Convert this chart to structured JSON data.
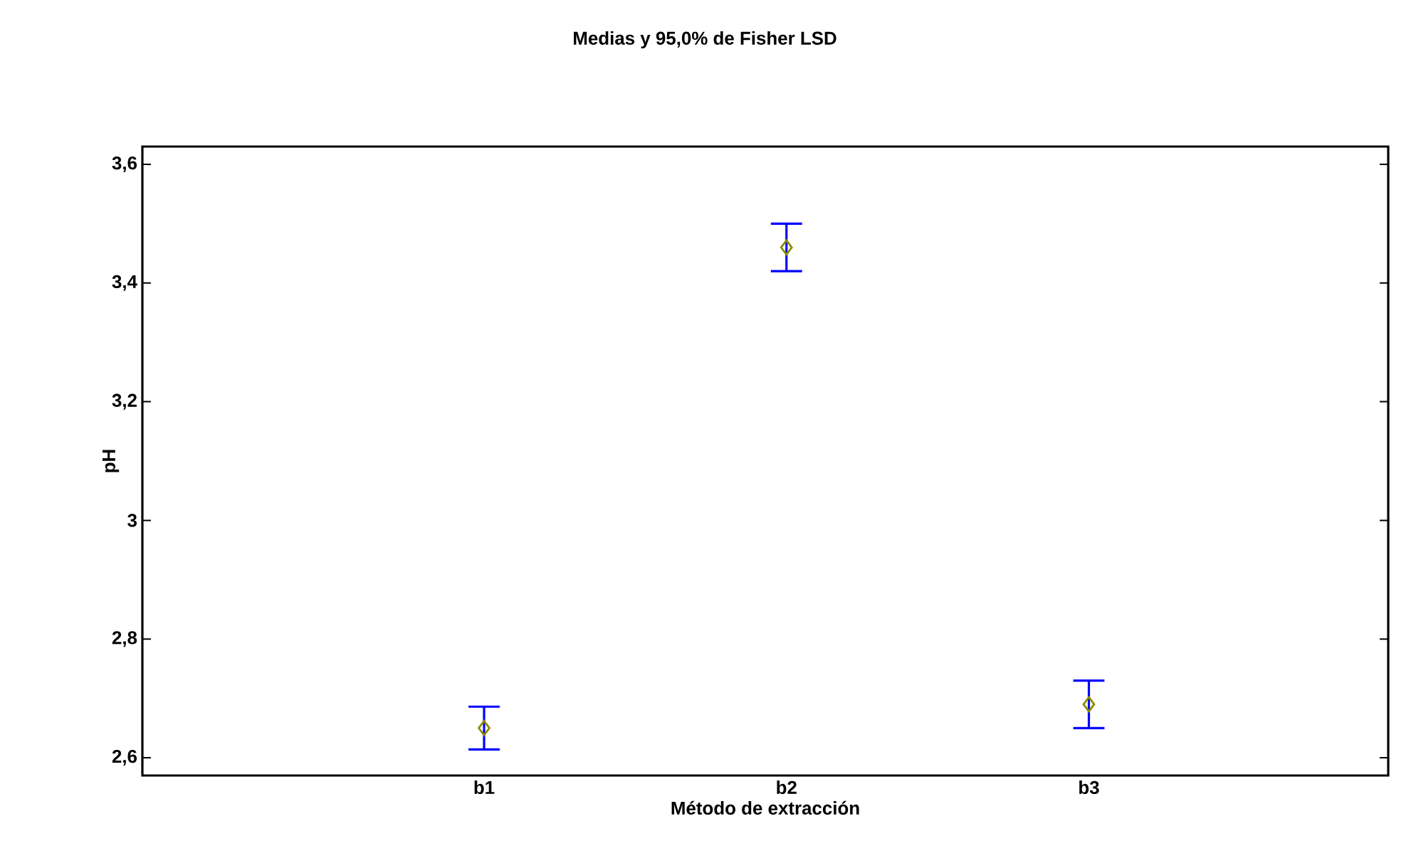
{
  "chart_data": {
    "type": "scatter",
    "title": "Medias y 95,0% de Fisher LSD",
    "xlabel": "Método de extracción",
    "ylabel": "pH",
    "categories": [
      "b1",
      "b2",
      "b3"
    ],
    "series": [
      {
        "color": "#8b8b00",
        "values": [
          2.65,
          3.46,
          2.69
        ],
        "errors": [
          0.036,
          0.04,
          0.04
        ]
      }
    ],
    "marker": "diamond",
    "ylim": [
      2.57,
      3.63
    ],
    "yticks": [
      {
        "value": 2.6,
        "label": "2,6"
      },
      {
        "value": 2.8,
        "label": "2,8"
      },
      3,
      {
        "value": 3.2,
        "label": "3,2"
      },
      {
        "value": 3.4,
        "label": "3,4"
      },
      {
        "value": 3.6,
        "label": "3,6"
      }
    ],
    "grid": false
  }
}
